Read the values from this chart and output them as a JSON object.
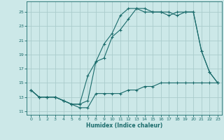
{
  "xlabel": "Humidex (Indice chaleur)",
  "background_color": "#cce8e8",
  "grid_color": "#aacccc",
  "line_color": "#1a6b6b",
  "x_ticks": [
    0,
    1,
    2,
    3,
    4,
    5,
    6,
    7,
    8,
    9,
    10,
    11,
    12,
    13,
    14,
    15,
    16,
    17,
    18,
    19,
    20,
    21,
    22,
    23
  ],
  "y_ticks": [
    11,
    13,
    15,
    17,
    19,
    21,
    23,
    25
  ],
  "xlim": [
    -0.5,
    23.5
  ],
  "ylim": [
    10.5,
    26.5
  ],
  "line1_x": [
    0,
    1,
    2,
    3,
    4,
    5,
    6,
    7,
    8,
    9,
    10,
    11,
    12,
    13,
    14,
    15,
    16,
    17,
    18,
    19,
    20,
    21,
    22,
    23
  ],
  "line1_y": [
    14.0,
    13.0,
    13.0,
    13.0,
    12.5,
    12.0,
    12.0,
    12.5,
    18.0,
    18.5,
    21.5,
    22.5,
    24.0,
    25.5,
    25.5,
    25.0,
    25.0,
    25.0,
    24.5,
    25.0,
    25.0,
    19.5,
    16.5,
    15.0
  ],
  "line2_x": [
    0,
    1,
    2,
    3,
    4,
    5,
    6,
    7,
    8,
    9,
    10,
    11,
    12,
    13,
    14,
    15,
    16,
    17,
    18,
    19,
    20,
    21,
    22,
    23
  ],
  "line2_y": [
    14.0,
    13.0,
    13.0,
    13.0,
    12.5,
    12.0,
    12.0,
    16.0,
    18.0,
    20.5,
    22.0,
    24.5,
    25.5,
    25.5,
    25.0,
    25.0,
    25.0,
    24.5,
    25.0,
    25.0,
    25.0,
    19.5,
    16.5,
    15.0
  ],
  "line3_x": [
    0,
    1,
    2,
    3,
    4,
    5,
    6,
    7,
    8,
    9,
    10,
    11,
    12,
    13,
    14,
    15,
    16,
    17,
    18,
    19,
    20,
    21,
    22,
    23
  ],
  "line3_y": [
    14.0,
    13.0,
    13.0,
    13.0,
    12.5,
    12.0,
    11.5,
    11.5,
    13.5,
    13.5,
    13.5,
    13.5,
    14.0,
    14.0,
    14.5,
    14.5,
    15.0,
    15.0,
    15.0,
    15.0,
    15.0,
    15.0,
    15.0,
    15.0
  ]
}
